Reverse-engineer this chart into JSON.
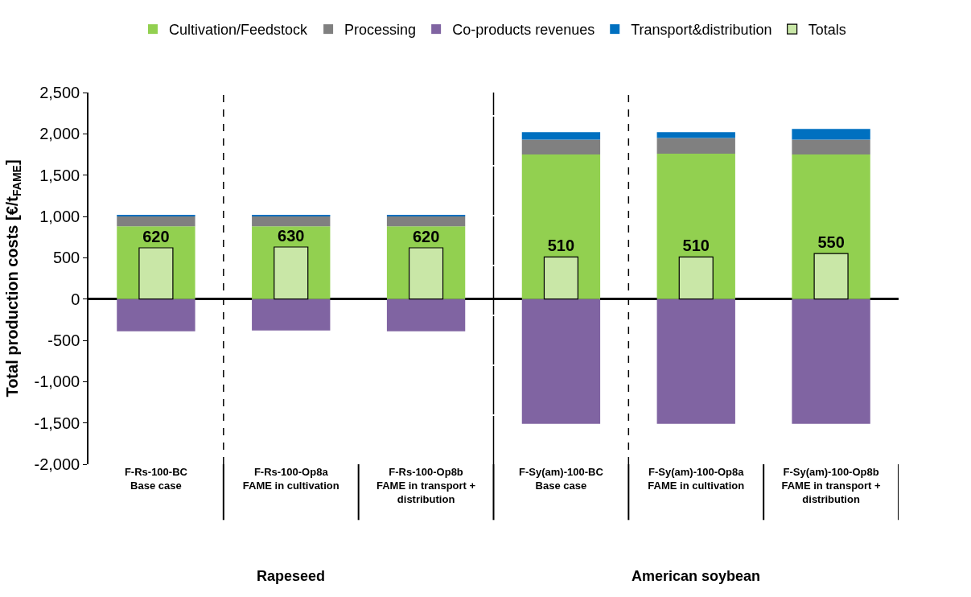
{
  "chart_data": {
    "type": "bar",
    "stacked": true,
    "ylabel": "Total production costs [€/t$_{FAME}$]",
    "categories": [
      "F-Rs-100-BC\nBase case",
      "F-Rs-100-Op8a\nFAME in cultivation",
      "F-Rs-100-Op8b\nFAME in transport +\ndistribution",
      "F-Sy(am)-100-BC\nBase case",
      "F-Sy(am)-100-Op8a\nFAME in cultivation",
      "F-Sy(am)-100-Op8b\nFAME in transport +\ndistribution"
    ],
    "series": [
      {
        "name": "Cultivation/Feedstock",
        "color": "#92d050",
        "values": [
          880,
          880,
          880,
          1750,
          1760,
          1750
        ]
      },
      {
        "name": "Processing",
        "color": "#808080",
        "values": [
          120,
          120,
          120,
          180,
          190,
          180
        ]
      },
      {
        "name": "Co-products revenues",
        "color": "#8064a2",
        "values": [
          -390,
          -380,
          -390,
          -1510,
          -1510,
          -1510
        ]
      },
      {
        "name": "Transport&distribution",
        "color": "#0070c0",
        "values": [
          10,
          10,
          10,
          90,
          70,
          130
        ]
      },
      {
        "name": "Totals",
        "color": "#c9e7a7",
        "axis": "y2",
        "values": [
          620,
          630,
          620,
          510,
          510,
          550
        ],
        "value_labels": [
          "620",
          "630",
          "620",
          "510",
          "510",
          "550"
        ]
      }
    ],
    "ylim": [
      -2000,
      2500
    ],
    "yticks": [
      {
        "value": -2000,
        "label": "-2,000"
      },
      {
        "value": -1500,
        "label": "-1,500"
      },
      {
        "value": -1000,
        "label": "-1,000"
      },
      {
        "value": -500,
        "label": "-500"
      },
      0,
      500,
      {
        "value": 1000,
        "label": "1,000"
      },
      {
        "value": 1500,
        "label": "1,500"
      },
      {
        "value": 2000,
        "label": "2,000"
      },
      {
        "value": 2500,
        "label": "2,500"
      }
    ],
    "annotations": [
      "Rapeseed",
      "American soybean"
    ],
    "y2lim": [
      -2000,
      2500
    ],
    "tick_labels": "y",
    "legend": "top"
  }
}
